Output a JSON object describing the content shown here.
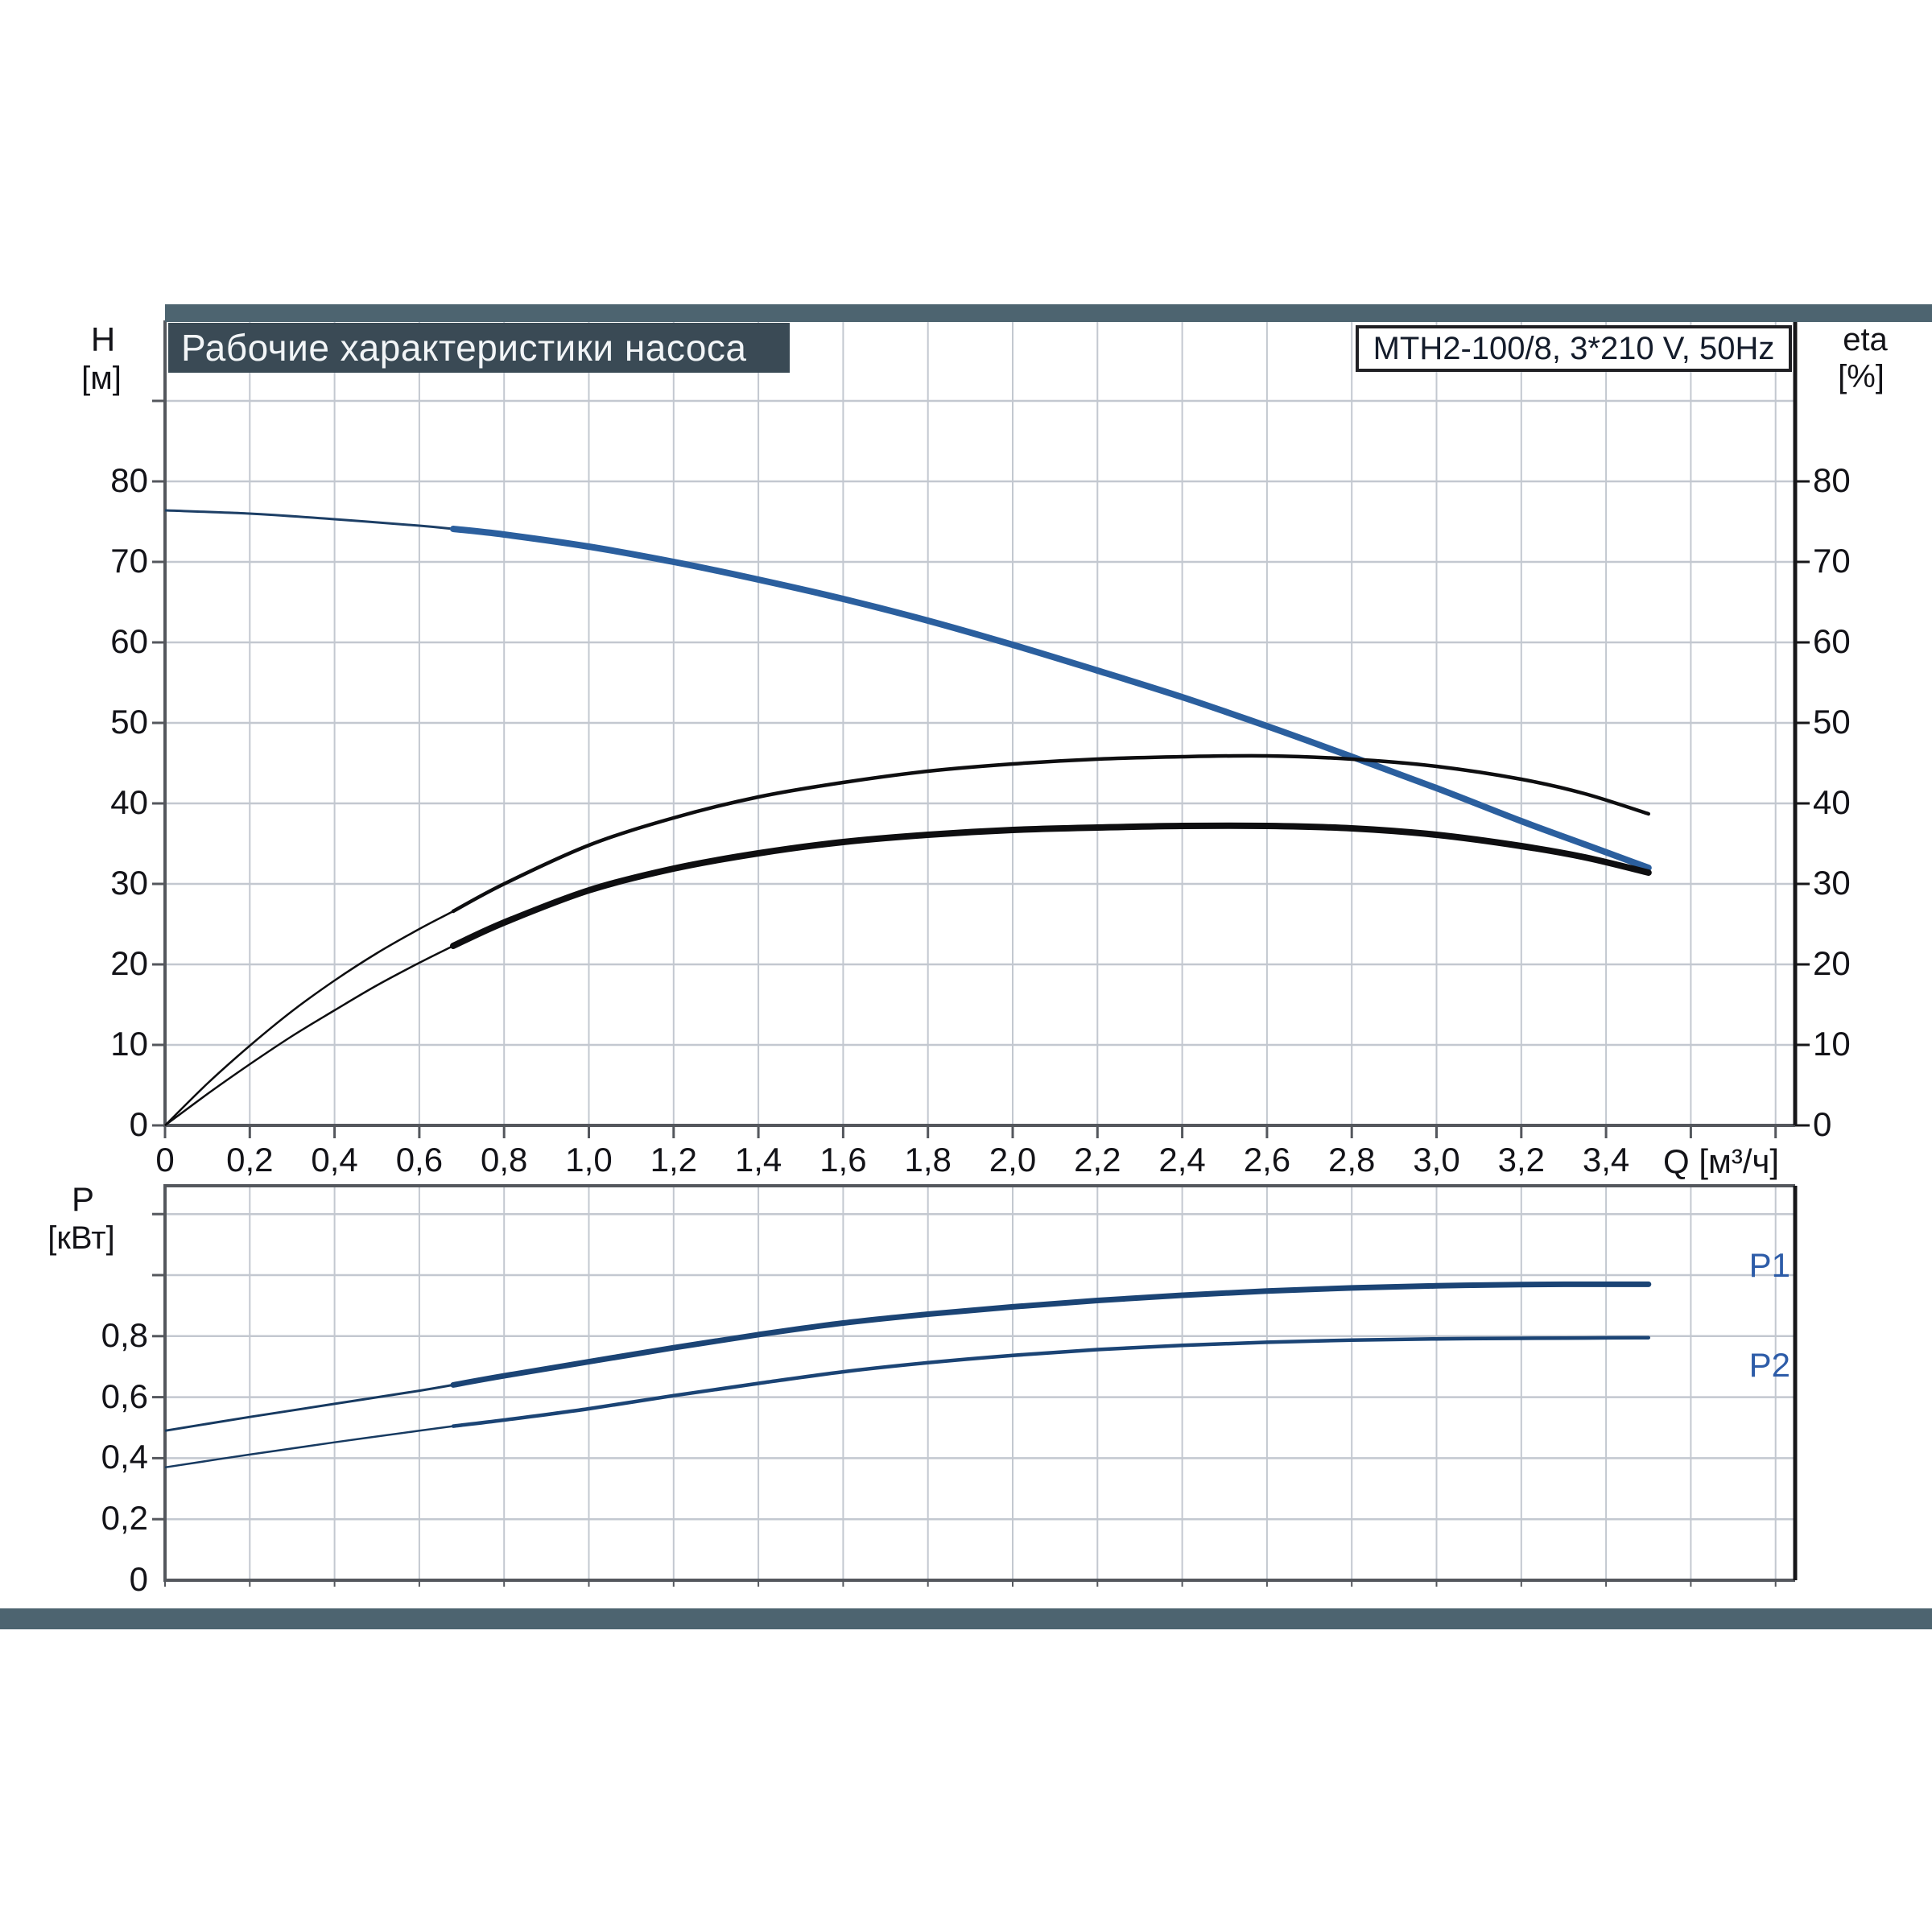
{
  "title": "Рабочие характеристики насоса",
  "pump_label": "MTH2-100/8, 3*210 V, 50Hz",
  "axis_titles": {
    "head": "H",
    "head_unit": "[м]",
    "eff": "eta",
    "eff_unit": "[%]",
    "flow_unit": "Q [м³/ч]",
    "power": "P",
    "power_unit": "[кВт]"
  },
  "curve_labels": {
    "p1": "P1",
    "p2": "P2"
  },
  "colors": {
    "band": "#4d6470",
    "title_box_bg": "#3a4a55",
    "title_text": "#f2f5f7",
    "pump_box_border": "#202024",
    "pump_text": "#141c2b",
    "grid": "#c3c8d0",
    "frame": "#54575d",
    "frame_right": "#17171a",
    "tick_text": "#131318",
    "head_thin": "#1d3f66",
    "head_thick": "#2b5f9e",
    "eta_curve": "#0e0e10",
    "power_curve_thin": "#173a61",
    "power_curve_thick": "#1b4475",
    "curve_label_text": "#2d5ca8"
  },
  "chart_data": [
    {
      "id": "head-efficiency",
      "type": "line",
      "title": "Рабочие характеристики насоса",
      "legend_position": "none",
      "grid": true,
      "x_axis": {
        "label": "Q [м³/ч]",
        "min": 0,
        "max": 3.85,
        "grid_step": 0.2,
        "tick_labels": [
          [
            0,
            "0"
          ],
          [
            0.2,
            "0,2"
          ],
          [
            0.4,
            "0,4"
          ],
          [
            0.6,
            "0,6"
          ],
          [
            0.8,
            "0,8"
          ],
          [
            1,
            "1,0"
          ],
          [
            1.2,
            "1,2"
          ],
          [
            1.4,
            "1,4"
          ],
          [
            1.6,
            "1,6"
          ],
          [
            1.8,
            "1,8"
          ],
          [
            2,
            "2,0"
          ],
          [
            2.2,
            "2,2"
          ],
          [
            2.4,
            "2,4"
          ],
          [
            2.6,
            "2,6"
          ],
          [
            2.8,
            "2,8"
          ],
          [
            3,
            "3,0"
          ],
          [
            3.2,
            "3,2"
          ],
          [
            3.4,
            "3,4"
          ]
        ]
      },
      "y_left_axis": {
        "label": "H [м]",
        "min": 0,
        "max": 100,
        "grid_step": 10,
        "tick_labels": [
          [
            80,
            "80"
          ],
          [
            70,
            "70"
          ],
          [
            60,
            "60"
          ],
          [
            50,
            "50"
          ],
          [
            40,
            "40"
          ],
          [
            30,
            "30"
          ],
          [
            20,
            "20"
          ],
          [
            10,
            "10"
          ],
          [
            0,
            "0"
          ]
        ]
      },
      "y_right_axis": {
        "label": "eta [%]",
        "min": 0,
        "max": 100,
        "grid_step": 10,
        "tick_labels": [
          [
            80,
            "80"
          ],
          [
            70,
            "70"
          ],
          [
            60,
            "60"
          ],
          [
            50,
            "50"
          ],
          [
            40,
            "40"
          ],
          [
            30,
            "30"
          ],
          [
            20,
            "20"
          ],
          [
            10,
            "10"
          ],
          [
            0,
            "0"
          ]
        ]
      },
      "duty_range_start_q": 0.68,
      "series": [
        {
          "name": "H",
          "axis": "left",
          "color_thin": "#1d3f66",
          "color_thick": "#2b5f9e",
          "width_thin": 3,
          "width_thick": 8,
          "points": [
            [
              0,
              76.4
            ],
            [
              0.2,
              76.0
            ],
            [
              0.4,
              75.3
            ],
            [
              0.6,
              74.5
            ],
            [
              0.68,
              74.1
            ],
            [
              0.8,
              73.4
            ],
            [
              1.0,
              71.9
            ],
            [
              1.2,
              70.0
            ],
            [
              1.4,
              67.8
            ],
            [
              1.6,
              65.4
            ],
            [
              1.8,
              62.7
            ],
            [
              2.0,
              59.7
            ],
            [
              2.2,
              56.5
            ],
            [
              2.4,
              53.2
            ],
            [
              2.6,
              49.6
            ],
            [
              2.8,
              45.8
            ],
            [
              3.0,
              41.9
            ],
            [
              3.2,
              37.8
            ],
            [
              3.35,
              34.9
            ],
            [
              3.5,
              32.0
            ]
          ]
        },
        {
          "name": "eta",
          "axis": "right",
          "color_thin": "#0e0e10",
          "color_thick": "#0e0e10",
          "width_thin": 2.5,
          "width_thick": 4.5,
          "points": [
            [
              0,
              0
            ],
            [
              0.1,
              5.2
            ],
            [
              0.2,
              9.9
            ],
            [
              0.3,
              14.2
            ],
            [
              0.4,
              18.0
            ],
            [
              0.5,
              21.4
            ],
            [
              0.6,
              24.4
            ],
            [
              0.68,
              26.6
            ],
            [
              0.8,
              30.0
            ],
            [
              1.0,
              34.8
            ],
            [
              1.2,
              38.2
            ],
            [
              1.4,
              40.8
            ],
            [
              1.6,
              42.6
            ],
            [
              1.8,
              44.0
            ],
            [
              2.0,
              44.9
            ],
            [
              2.2,
              45.5
            ],
            [
              2.4,
              45.8
            ],
            [
              2.6,
              45.9
            ],
            [
              2.8,
              45.5
            ],
            [
              3.0,
              44.6
            ],
            [
              3.2,
              43.0
            ],
            [
              3.35,
              41.2
            ],
            [
              3.5,
              38.7
            ]
          ]
        },
        {
          "name": "eta-total",
          "axis": "right",
          "color_thin": "#0e0e10",
          "color_thick": "#0e0e10",
          "width_thin": 2.5,
          "width_thick": 8,
          "points": [
            [
              0,
              0
            ],
            [
              0.1,
              3.9
            ],
            [
              0.2,
              7.6
            ],
            [
              0.3,
              11.1
            ],
            [
              0.4,
              14.3
            ],
            [
              0.5,
              17.4
            ],
            [
              0.6,
              20.2
            ],
            [
              0.68,
              22.3
            ],
            [
              0.8,
              25.2
            ],
            [
              1.0,
              29.2
            ],
            [
              1.2,
              31.9
            ],
            [
              1.4,
              33.8
            ],
            [
              1.6,
              35.2
            ],
            [
              1.8,
              36.1
            ],
            [
              2.0,
              36.7
            ],
            [
              2.2,
              37.0
            ],
            [
              2.4,
              37.2
            ],
            [
              2.6,
              37.2
            ],
            [
              2.8,
              36.9
            ],
            [
              3.0,
              36.1
            ],
            [
              3.2,
              34.7
            ],
            [
              3.35,
              33.3
            ],
            [
              3.5,
              31.4
            ]
          ]
        }
      ]
    },
    {
      "id": "power",
      "type": "line",
      "grid": true,
      "x_axis": {
        "label": "",
        "min": 0,
        "max": 3.85,
        "grid_step": 0.2,
        "tick_labels": []
      },
      "y_axis": {
        "label": "P [кВт]",
        "min": 0,
        "max": 1.29,
        "grid_step": 0.2,
        "tick_labels": [
          [
            0.8,
            "0,8"
          ],
          [
            0.6,
            "0,6"
          ],
          [
            0.4,
            "0,4"
          ],
          [
            0.2,
            "0,2"
          ],
          [
            0,
            "0"
          ]
        ]
      },
      "duty_range_start_q": 0.68,
      "series": [
        {
          "name": "P1",
          "color_thin": "#173a61",
          "color_thick": "#1b4475",
          "width_thin": 3,
          "width_thick": 7,
          "points": [
            [
              0,
              0.49
            ],
            [
              0.2,
              0.535
            ],
            [
              0.4,
              0.578
            ],
            [
              0.6,
              0.621
            ],
            [
              0.68,
              0.64
            ],
            [
              0.8,
              0.67
            ],
            [
              1.0,
              0.716
            ],
            [
              1.2,
              0.762
            ],
            [
              1.4,
              0.805
            ],
            [
              1.6,
              0.843
            ],
            [
              1.8,
              0.872
            ],
            [
              2.0,
              0.896
            ],
            [
              2.2,
              0.917
            ],
            [
              2.4,
              0.934
            ],
            [
              2.6,
              0.948
            ],
            [
              2.8,
              0.958
            ],
            [
              3.0,
              0.965
            ],
            [
              3.2,
              0.969
            ],
            [
              3.35,
              0.97
            ],
            [
              3.5,
              0.97
            ]
          ]
        },
        {
          "name": "P2",
          "color_thin": "#173a61",
          "color_thick": "#1b4475",
          "width_thin": 2.5,
          "width_thick": 4.5,
          "points": [
            [
              0,
              0.37
            ],
            [
              0.2,
              0.412
            ],
            [
              0.4,
              0.452
            ],
            [
              0.6,
              0.49
            ],
            [
              0.68,
              0.505
            ],
            [
              0.8,
              0.525
            ],
            [
              1.0,
              0.562
            ],
            [
              1.2,
              0.605
            ],
            [
              1.4,
              0.645
            ],
            [
              1.6,
              0.683
            ],
            [
              1.8,
              0.713
            ],
            [
              2.0,
              0.737
            ],
            [
              2.2,
              0.756
            ],
            [
              2.4,
              0.77
            ],
            [
              2.6,
              0.78
            ],
            [
              2.8,
              0.787
            ],
            [
              3.0,
              0.791
            ],
            [
              3.2,
              0.793
            ],
            [
              3.35,
              0.794
            ],
            [
              3.5,
              0.795
            ]
          ]
        }
      ]
    }
  ]
}
